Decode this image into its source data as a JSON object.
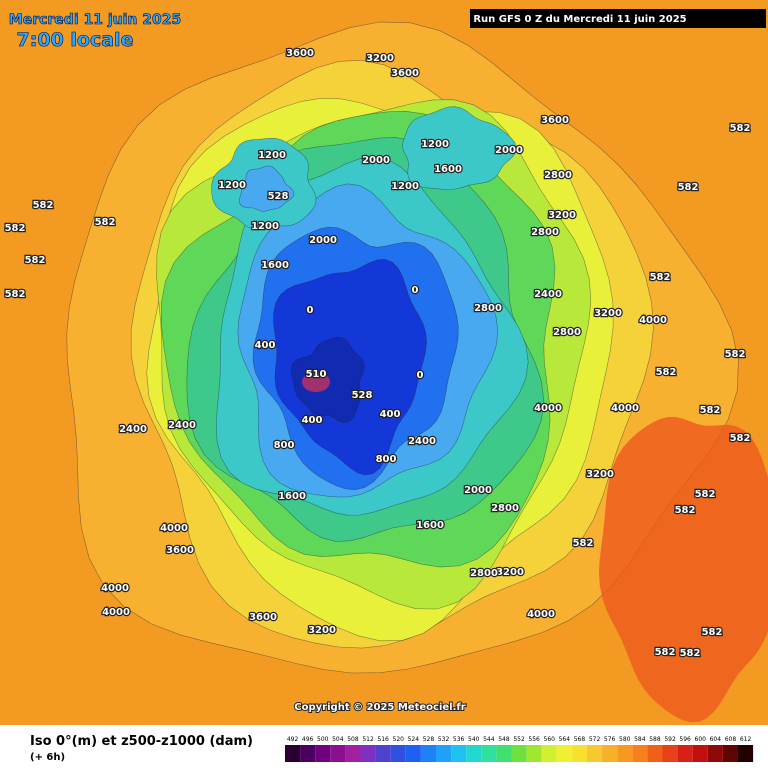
{
  "header": {
    "date": "Mercredi 11 juin 2025",
    "time": "7:00 locale",
    "run": "Run GFS 0 Z du Mercredi 11 juin 2025"
  },
  "copyright": "Copyright © 2025 Meteociel.fr",
  "legend": {
    "title": "Iso 0°(m) et z500-z1000 (dam)",
    "step": "(+ 6h)",
    "scale": [
      "492",
      "496",
      "500",
      "504",
      "508",
      "512",
      "516",
      "520",
      "524",
      "528",
      "532",
      "536",
      "540",
      "544",
      "548",
      "552",
      "556",
      "560",
      "564",
      "568",
      "572",
      "576",
      "580",
      "584",
      "588",
      "592",
      "596",
      "600",
      "604",
      "608",
      "612"
    ]
  },
  "map_labels": [
    "582",
    "582",
    "582",
    "582",
    "582",
    "582",
    "582",
    "582",
    "582",
    "582",
    "582",
    "582",
    "582",
    "582",
    "582",
    "582",
    "582",
    "582",
    "3600",
    "3600",
    "3600",
    "3600",
    "3600",
    "3200",
    "3200",
    "3200",
    "3200",
    "3200",
    "3200",
    "2800",
    "2800",
    "2800",
    "2800",
    "2800",
    "2800",
    "2400",
    "2400",
    "2400",
    "2400",
    "2000",
    "2000",
    "2000",
    "2000",
    "1600",
    "1600",
    "1600",
    "1600",
    "1200",
    "1200",
    "1200",
    "1200",
    "1200",
    "400",
    "400",
    "400",
    "0",
    "0",
    "0",
    "800",
    "800",
    "4000",
    "4000",
    "4000",
    "4000",
    "4000",
    "4000",
    "4000",
    "510",
    "528",
    "528"
  ]
}
